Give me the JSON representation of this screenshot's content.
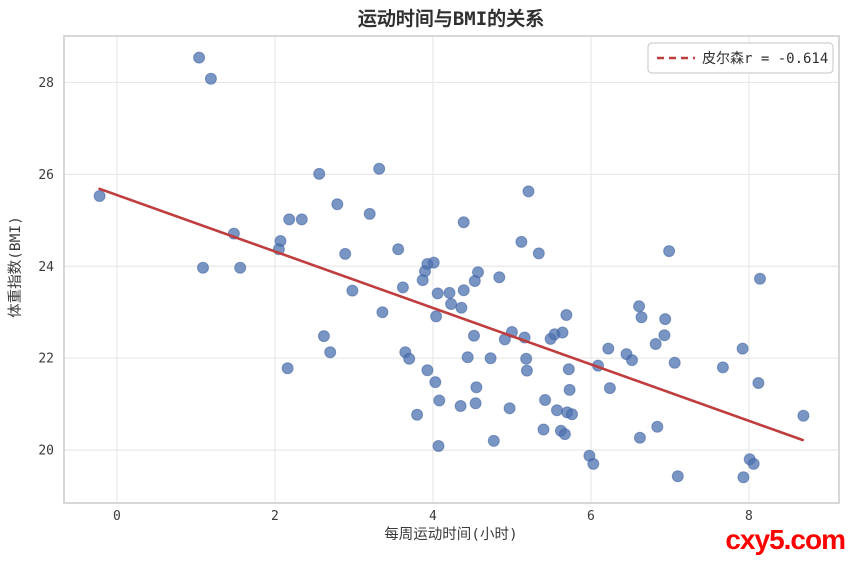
{
  "page": {
    "watermark": "cxy5.com",
    "watermark_color": "#ff0000"
  },
  "chart_data": {
    "type": "scatter",
    "title": "运动时间与BMI的关系",
    "xlabel": "每周运动时间(小时)",
    "ylabel": "体重指数(BMI)",
    "xlim": [
      -0.67,
      9.14
    ],
    "ylim": [
      18.85,
      29.01
    ],
    "xticks": [
      0,
      2,
      4,
      6,
      8
    ],
    "yticks": [
      20,
      22,
      24,
      26,
      28
    ],
    "grid": true,
    "legend": {
      "position": "upper right",
      "entries": [
        {
          "label": "皮尔森r = -0.614",
          "line_style": "dashed",
          "color": "#c03d3e"
        }
      ]
    },
    "pearson_r": -0.614,
    "trend": {
      "x_start": -0.22,
      "x_end": 8.68,
      "slope": -0.614,
      "intercept": 25.55,
      "color": "#c03d3e",
      "width": 2.6
    },
    "colors": {
      "point_fill": "#4c72b0",
      "point_edge": "#3f62a0",
      "point_opacity": 0.75,
      "grid": "#e8e8e8",
      "border": "#cdcdcd",
      "tick_text": "#3b3b3b",
      "title_text": "#2f2f2f"
    },
    "points": [
      [
        -0.22,
        25.53
      ],
      [
        1.04,
        28.54
      ],
      [
        1.19,
        28.08
      ],
      [
        2.56,
        26.01
      ],
      [
        3.32,
        26.12
      ],
      [
        2.79,
        25.35
      ],
      [
        3.2,
        25.14
      ],
      [
        2.18,
        25.02
      ],
      [
        2.34,
        25.02
      ],
      [
        1.48,
        24.71
      ],
      [
        2.07,
        24.55
      ],
      [
        2.05,
        24.37
      ],
      [
        3.56,
        24.37
      ],
      [
        2.89,
        24.27
      ],
      [
        1.09,
        23.97
      ],
      [
        1.56,
        23.97
      ],
      [
        5.21,
        25.63
      ],
      [
        4.39,
        24.96
      ],
      [
        5.12,
        24.53
      ],
      [
        5.34,
        24.28
      ],
      [
        6.99,
        24.33
      ],
      [
        8.14,
        23.73
      ],
      [
        2.98,
        23.47
      ],
      [
        3.93,
        24.05
      ],
      [
        4.01,
        24.08
      ],
      [
        3.9,
        23.89
      ],
      [
        3.87,
        23.7
      ],
      [
        3.62,
        23.54
      ],
      [
        4.06,
        23.41
      ],
      [
        4.21,
        23.42
      ],
      [
        4.23,
        23.18
      ],
      [
        4.39,
        23.48
      ],
      [
        4.57,
        23.87
      ],
      [
        4.53,
        23.68
      ],
      [
        4.36,
        23.1
      ],
      [
        3.36,
        23.0
      ],
      [
        4.04,
        22.91
      ],
      [
        2.62,
        22.48
      ],
      [
        2.7,
        22.13
      ],
      [
        3.65,
        22.13
      ],
      [
        3.7,
        21.99
      ],
      [
        2.16,
        21.78
      ],
      [
        3.93,
        21.74
      ],
      [
        4.03,
        21.48
      ],
      [
        4.84,
        23.76
      ],
      [
        6.61,
        23.13
      ],
      [
        6.64,
        22.89
      ],
      [
        6.94,
        22.85
      ],
      [
        5.69,
        22.94
      ],
      [
        4.52,
        22.49
      ],
      [
        4.91,
        22.41
      ],
      [
        5.0,
        22.57
      ],
      [
        5.16,
        22.45
      ],
      [
        5.49,
        22.42
      ],
      [
        5.54,
        22.52
      ],
      [
        5.64,
        22.56
      ],
      [
        6.93,
        22.5
      ],
      [
        6.82,
        22.31
      ],
      [
        7.92,
        22.21
      ],
      [
        4.44,
        22.02
      ],
      [
        4.73,
        22.0
      ],
      [
        5.18,
        21.99
      ],
      [
        5.19,
        21.73
      ],
      [
        5.72,
        21.76
      ],
      [
        6.09,
        21.84
      ],
      [
        6.45,
        22.09
      ],
      [
        6.52,
        21.96
      ],
      [
        7.06,
        21.9
      ],
      [
        7.67,
        21.8
      ],
      [
        6.24,
        21.35
      ],
      [
        8.12,
        21.46
      ],
      [
        4.55,
        21.37
      ],
      [
        5.73,
        21.31
      ],
      [
        4.08,
        21.08
      ],
      [
        4.35,
        20.96
      ],
      [
        4.54,
        21.02
      ],
      [
        3.8,
        20.77
      ],
      [
        4.97,
        20.91
      ],
      [
        5.42,
        21.09
      ],
      [
        5.57,
        20.87
      ],
      [
        5.7,
        20.82
      ],
      [
        5.76,
        20.78
      ],
      [
        5.4,
        20.45
      ],
      [
        5.62,
        20.42
      ],
      [
        5.67,
        20.35
      ],
      [
        4.77,
        20.2
      ],
      [
        6.84,
        20.51
      ],
      [
        6.62,
        20.27
      ],
      [
        8.69,
        20.75
      ],
      [
        5.98,
        19.88
      ],
      [
        6.03,
        19.7
      ],
      [
        7.1,
        19.43
      ],
      [
        8.01,
        19.8
      ],
      [
        8.06,
        19.7
      ],
      [
        7.93,
        19.41
      ],
      [
        4.07,
        20.09
      ],
      [
        6.22,
        22.21
      ]
    ]
  }
}
